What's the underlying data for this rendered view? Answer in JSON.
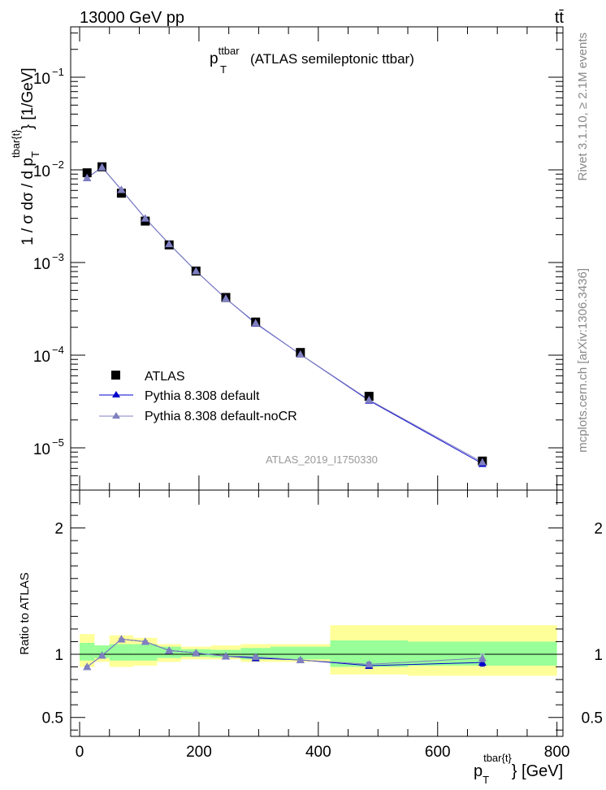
{
  "header": {
    "left": "13000 GeV pp",
    "right": "tt̄"
  },
  "side_labels": {
    "rivet": "Rivet 3.1.10, ≥ 2.1M events",
    "mcplots": "mcplots.cern.ch [arXiv:1306.3436]"
  },
  "chart_data": [
    {
      "type": "scatter",
      "panel": "main",
      "title": "(ATLAS semileptonic ttbar)",
      "title_var_base": "p",
      "title_var_sub": "T",
      "title_var_sup": "ttbar",
      "ylabel": "1 / σ dσ / d p_T^{tbar{t}} [1/GeV]",
      "ylabel_text": "1 / σ dσ / d p",
      "ylabel_sub": "T",
      "ylabel_sup": "tbar{t}",
      "ylabel_tail": "} [1/GeV]",
      "yscale": "log",
      "xlim": [
        -15,
        810
      ],
      "ylim": [
        3.5e-06,
        0.35
      ],
      "y_ticks": [
        {
          "value": 1e-05,
          "mantissa": "10",
          "exp": "−5"
        },
        {
          "value": 0.0001,
          "mantissa": "10",
          "exp": "−4"
        },
        {
          "value": 0.001,
          "mantissa": "10",
          "exp": "−3"
        },
        {
          "value": 0.01,
          "mantissa": "10",
          "exp": "−2"
        },
        {
          "value": 0.1,
          "mantissa": "10",
          "exp": "−1"
        }
      ],
      "watermark": "ATLAS_2019_I1750330",
      "legend_position": "lower-left",
      "x": [
        12.5,
        37.5,
        70,
        110,
        150,
        195,
        245,
        295,
        370,
        485,
        675
      ],
      "series": [
        {
          "name": "ATLAS",
          "marker": "square",
          "color": "#000000",
          "values": [
            0.0093,
            0.0108,
            0.0056,
            0.0028,
            0.00155,
            0.00081,
            0.00042,
            0.000228,
            0.000107,
            3.6e-05,
            7.2e-06
          ]
        },
        {
          "name": "Pythia 8.308 default",
          "marker": "triangle",
          "color": "#0000cc",
          "values": [
            0.0082,
            0.0107,
            0.0061,
            0.003,
            0.00159,
            0.00081,
            0.00041,
            0.000221,
            0.000102,
            3.25e-05,
            6.75e-06
          ]
        },
        {
          "name": "Pythia 8.308 default-noCR",
          "marker": "triangle",
          "color": "#8080c0",
          "values": [
            0.0082,
            0.0107,
            0.0061,
            0.003,
            0.00159,
            0.00081,
            0.00041,
            0.000223,
            0.000102,
            3.3e-05,
            7e-06
          ]
        }
      ]
    },
    {
      "type": "line",
      "panel": "ratio",
      "ylabel": "Ratio to ATLAS",
      "xlabel": "p_T^{tbar{t}} [GeV]",
      "xlabel_base": "p",
      "xlabel_sub": "T",
      "xlabel_sup": "tbar{t}",
      "xlabel_tail": "} [GeV]",
      "xlim": [
        -15,
        810
      ],
      "ylim": [
        0.35,
        2.3
      ],
      "x_ticks": [
        0,
        200,
        400,
        600,
        800
      ],
      "x_tick_labels": [
        "0",
        "200",
        "400",
        "600",
        "800"
      ],
      "y_ticks": [
        0.5,
        1,
        2
      ],
      "y_tick_labels": [
        "0.5",
        "1",
        "2"
      ],
      "bins": [
        [
          0,
          25
        ],
        [
          25,
          50
        ],
        [
          50,
          90
        ],
        [
          90,
          130
        ],
        [
          130,
          170
        ],
        [
          170,
          220
        ],
        [
          220,
          270
        ],
        [
          270,
          320
        ],
        [
          320,
          420
        ],
        [
          420,
          550
        ],
        [
          550,
          800
        ]
      ],
      "band_green": [
        [
          0.95,
          1.09
        ],
        [
          0.97,
          1.07
        ],
        [
          0.95,
          1.08
        ],
        [
          0.95,
          1.08
        ],
        [
          0.97,
          1.06
        ],
        [
          0.98,
          1.04
        ],
        [
          0.975,
          1.035
        ],
        [
          0.96,
          1.05
        ],
        [
          0.96,
          1.06
        ],
        [
          0.9,
          1.11
        ],
        [
          0.91,
          1.1
        ]
      ],
      "band_yellow": [
        [
          0.9,
          1.16
        ],
        [
          0.94,
          1.07
        ],
        [
          0.9,
          1.15
        ],
        [
          0.91,
          1.13
        ],
        [
          0.94,
          1.08
        ],
        [
          0.96,
          1.06
        ],
        [
          0.96,
          1.07
        ],
        [
          0.94,
          1.08
        ],
        [
          0.94,
          1.08
        ],
        [
          0.84,
          1.23
        ],
        [
          0.83,
          1.23
        ]
      ],
      "x": [
        12.5,
        37.5,
        70,
        110,
        150,
        195,
        245,
        295,
        370,
        485,
        675
      ],
      "series": [
        {
          "name": "Pythia 8.308 default",
          "color": "#0000cc",
          "values": [
            0.9,
            0.99,
            1.12,
            1.1,
            1.03,
            1.01,
            0.985,
            0.97,
            0.955,
            0.91,
            0.935
          ],
          "errors": [
            0.006,
            0.005,
            0.006,
            0.006,
            0.007,
            0.008,
            0.009,
            0.01,
            0.012,
            0.02,
            0.03
          ]
        },
        {
          "name": "Pythia 8.308 default-noCR",
          "color": "#8080c0",
          "values": [
            0.9,
            0.99,
            1.12,
            1.1,
            1.03,
            1.01,
            0.985,
            0.98,
            0.955,
            0.92,
            0.97
          ],
          "errors": [
            0.006,
            0.005,
            0.006,
            0.006,
            0.007,
            0.008,
            0.009,
            0.01,
            0.012,
            0.02,
            0.03
          ]
        }
      ]
    }
  ]
}
